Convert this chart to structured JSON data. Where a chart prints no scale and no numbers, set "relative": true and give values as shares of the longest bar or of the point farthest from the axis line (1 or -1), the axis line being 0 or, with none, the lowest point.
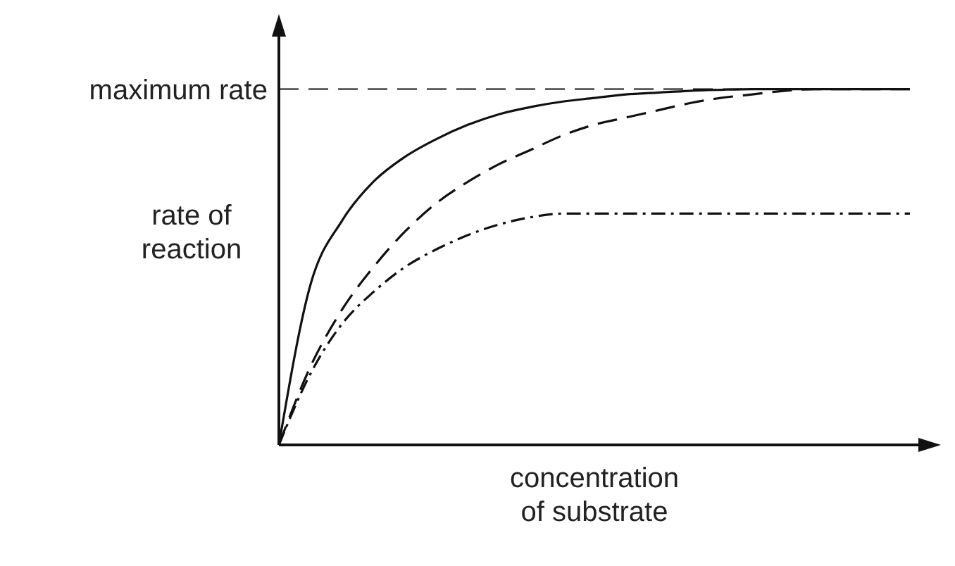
{
  "chart_data": {
    "type": "line",
    "relative": true,
    "xlabel": "concentration of substrate",
    "ylabel": "rate of reaction",
    "categories": [
      null,
      null,
      null,
      null,
      null,
      null,
      null,
      null,
      null,
      null,
      null,
      null,
      null,
      null,
      null,
      null,
      null,
      null,
      null,
      null,
      null
    ],
    "marker": "none",
    "grid": false,
    "legend": false,
    "series": [
      {
        "color": "#111111",
        "line_style": "solid",
        "values": [
          0,
          0.45,
          0.63,
          0.74,
          0.81,
          0.86,
          0.9,
          0.93,
          0.95,
          0.965,
          0.975,
          0.985,
          0.99,
          0.995,
          0.998,
          1,
          1,
          1,
          1,
          1,
          1
        ]
      },
      {
        "color": "#111111",
        "line_style": "dashed",
        "values": [
          0,
          0.22,
          0.38,
          0.5,
          0.6,
          0.68,
          0.74,
          0.79,
          0.83,
          0.87,
          0.9,
          0.92,
          0.94,
          0.96,
          0.975,
          0.985,
          0.995,
          1,
          1,
          1,
          1
        ]
      },
      {
        "color": "#111111",
        "line_style": "dashdot",
        "values": [
          0,
          0.2,
          0.34,
          0.43,
          0.5,
          0.55,
          0.59,
          0.62,
          0.64,
          0.65,
          0.65,
          0.65,
          0.65,
          0.65,
          0.65,
          0.65,
          0.65,
          0.65,
          0.65,
          0.65,
          0.65
        ]
      }
    ],
    "ref_lines": [
      {
        "axis": "y",
        "value": 1,
        "label": "maximum rate",
        "color": "#111111",
        "line_style": "dashed"
      }
    ]
  }
}
